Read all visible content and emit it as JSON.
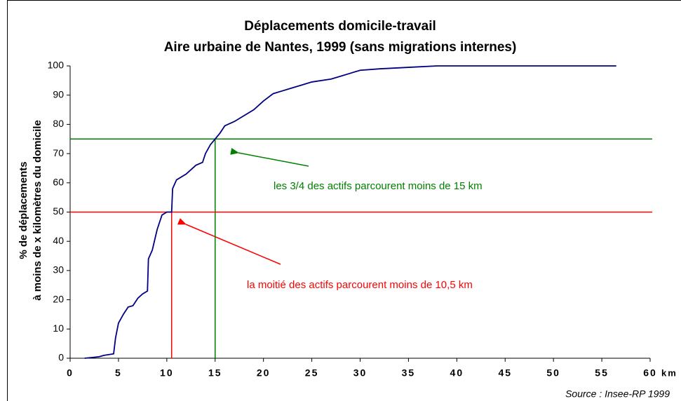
{
  "chart_data": {
    "type": "line",
    "title": [
      "Déplacements domicile-travail",
      "Aire urbaine de Nantes, 1999 (sans migrations internes)"
    ],
    "y_label": [
      "% de déplacements",
      "à moins de x kilomètres du domicile"
    ],
    "x_label": "km",
    "source": "Source : Insee-RP 1999",
    "x": [
      1.5,
      3,
      3.5,
      4.5,
      4.7,
      5,
      5.5,
      6,
      6.5,
      7,
      7.5,
      8,
      8.1,
      8.5,
      9,
      9.5,
      10,
      10.5,
      10.6,
      11,
      12,
      13,
      13.7,
      14,
      14.5,
      15,
      15.5,
      16,
      17,
      18,
      19,
      20,
      21,
      22,
      23,
      24,
      25,
      27,
      28,
      29,
      30,
      32,
      35,
      38,
      45,
      56.5
    ],
    "series": [
      {
        "color": "#000080",
        "values": [
          0,
          0.5,
          1,
          1.5,
          7,
          12,
          15,
          17.5,
          18,
          20.5,
          22,
          23,
          34,
          37,
          44,
          49,
          50,
          50,
          58,
          61,
          63,
          66,
          67,
          70,
          73,
          75,
          77,
          79.5,
          81,
          83,
          85,
          88,
          90.5,
          91.5,
          92.5,
          93.5,
          94.5,
          95.5,
          96.5,
          97.5,
          98.5,
          99,
          99.5,
          100,
          100,
          100
        ]
      }
    ],
    "reference_lines": [
      {
        "x": 15,
        "y": 75,
        "color": "#008000",
        "text": "les 3/4 des actifs parcourent moins de 15 km"
      },
      {
        "x": 10.5,
        "y": 50,
        "color": "#ff0000",
        "text": "la moitié des actifs parcourent moins de 10,5 km"
      }
    ],
    "xlim": [
      0,
      60
    ],
    "xticks": [
      0,
      5,
      10,
      15,
      20,
      25,
      30,
      35,
      40,
      45,
      50,
      55,
      60
    ],
    "ylim": [
      0,
      100
    ],
    "yticks": [
      0,
      10,
      20,
      30,
      40,
      50,
      60,
      70,
      80,
      90,
      100
    ],
    "grid": false
  }
}
